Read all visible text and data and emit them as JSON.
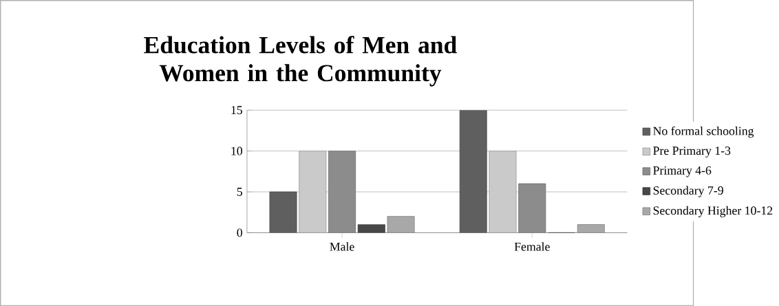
{
  "chart_data": {
    "type": "bar",
    "title": "Education Levels of Men and Women in the Community",
    "categories": [
      "Male",
      "Female"
    ],
    "series": [
      {
        "name": "No formal schooling",
        "color": "#5f5f5f",
        "values": [
          5,
          15
        ]
      },
      {
        "name": "Pre Primary 1-3",
        "color": "#cacaca",
        "values": [
          10,
          10
        ]
      },
      {
        "name": "Primary 4-6",
        "color": "#8c8c8c",
        "values": [
          10,
          6
        ]
      },
      {
        "name": "Secondary 7-9",
        "color": "#474747",
        "values": [
          1,
          0
        ]
      },
      {
        "name": "Secondary Higher 10-12",
        "color": "#a8a8a8",
        "values": [
          2,
          1
        ]
      }
    ],
    "ylim": [
      0,
      15
    ],
    "yticks": [
      0,
      5,
      10,
      15
    ],
    "grid": "y",
    "legend": "right"
  }
}
